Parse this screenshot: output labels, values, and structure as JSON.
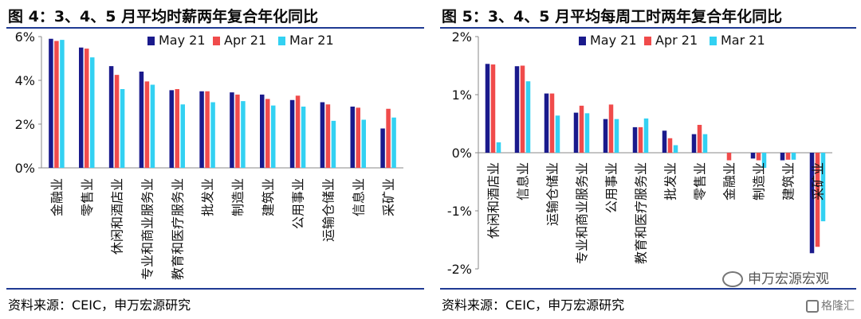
{
  "left": {
    "title": "图 4：3、4、5 月平均时薪两年复合年化同比",
    "source": "资料来源：CEIC，申万宏源研究"
  },
  "right": {
    "title": "图 5：3、4、5 月平均每周工时两年复合年化同比",
    "source": "资料来源：CEIC，申万宏源研究",
    "watermark": "申万宏源宏观",
    "watermark2": "格隆汇"
  },
  "colors": {
    "may": "#1a1a8c",
    "apr": "#f04b4b",
    "mar": "#33d1f2",
    "axis": "#888888"
  },
  "chart_data": [
    {
      "type": "bar",
      "title": "图 4：3、4、5 月平均时薪两年复合年化同比",
      "categories": [
        "金融业",
        "零售业",
        "休闲和酒店业",
        "专业和商业服务业",
        "教育和医疗服务业",
        "批发业",
        "制造业",
        "建筑业",
        "公用事业",
        "运输仓储业",
        "信息业",
        "采矿业"
      ],
      "series": [
        {
          "name": "May 21",
          "values": [
            5.9,
            5.5,
            4.65,
            4.4,
            3.55,
            3.5,
            3.45,
            3.35,
            3.1,
            3.0,
            2.8,
            1.8
          ]
        },
        {
          "name": "Apr 21",
          "values": [
            5.8,
            5.45,
            4.25,
            3.95,
            3.6,
            3.5,
            3.35,
            3.15,
            3.3,
            2.9,
            2.75,
            2.7
          ]
        },
        {
          "name": "Mar 21",
          "values": [
            5.85,
            5.05,
            3.6,
            3.8,
            2.9,
            3.0,
            3.05,
            2.85,
            2.8,
            2.15,
            2.2,
            2.3
          ]
        }
      ],
      "ylim": [
        0,
        6
      ],
      "yticks": [
        0,
        2,
        4,
        6
      ],
      "ytick_labels": [
        "0%",
        "2%",
        "4%",
        "6%"
      ],
      "legend": "top-right",
      "grid": false
    },
    {
      "type": "bar",
      "title": "图 5：3、4、5 月平均每周工时两年复合年化同比",
      "categories": [
        "休闲和酒店业",
        "信息业",
        "运输仓储业",
        "专业和商业服务业",
        "公用事业",
        "教育和医疗服务业",
        "批发业",
        "零售业",
        "金融业",
        "制造业",
        "建筑业",
        "采矿业"
      ],
      "series": [
        {
          "name": "May 21",
          "values": [
            1.53,
            1.49,
            1.02,
            0.69,
            0.58,
            0.44,
            0.38,
            0.32,
            0.0,
            -0.1,
            -0.13,
            -1.73
          ]
        },
        {
          "name": "Apr 21",
          "values": [
            1.52,
            1.5,
            1.02,
            0.81,
            0.83,
            0.44,
            0.25,
            0.48,
            -0.13,
            -0.13,
            -0.12,
            -1.62
          ]
        },
        {
          "name": "Mar 21",
          "values": [
            0.18,
            1.23,
            0.64,
            0.68,
            0.58,
            0.59,
            0.13,
            0.32,
            0.0,
            -0.26,
            -0.12,
            -1.18
          ]
        }
      ],
      "ylim": [
        -2,
        2
      ],
      "yticks": [
        -2,
        -1,
        0,
        1,
        2
      ],
      "ytick_labels": [
        "-2%",
        "-1%",
        "0%",
        "1%",
        "2%"
      ],
      "legend": "top-right",
      "grid": false
    }
  ]
}
